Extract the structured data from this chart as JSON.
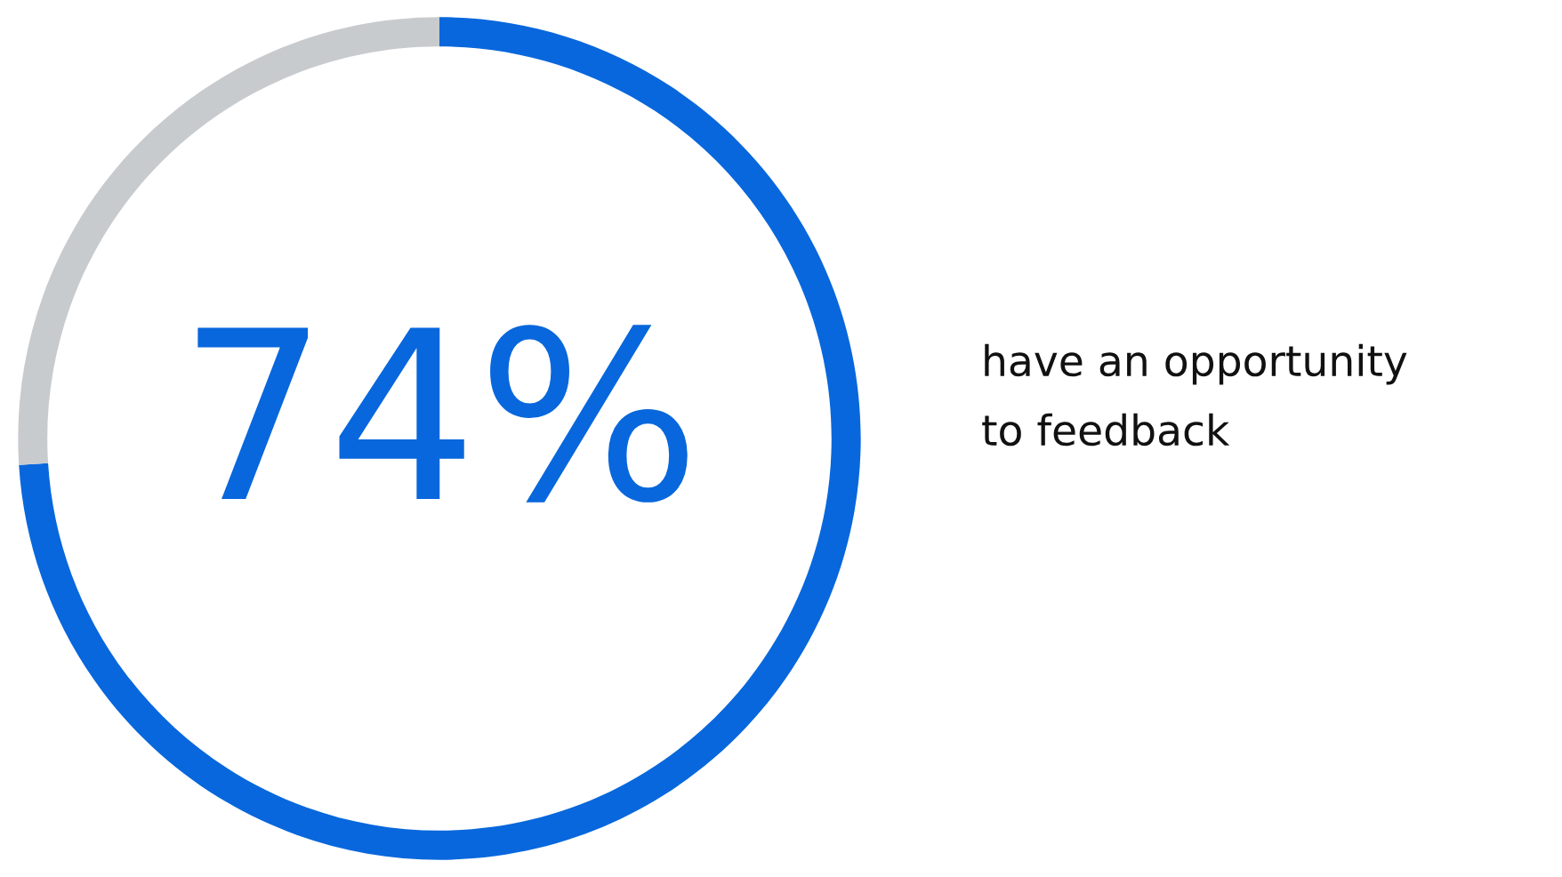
{
  "chart_data": {
    "type": "donut",
    "categories": [
      null,
      null
    ],
    "values": [
      74,
      26
    ],
    "colors": [
      "#0867dc",
      "#c8cbce"
    ],
    "value_labels": [
      "74%",
      null
    ],
    "annotations": [
      "have an opportunity\nto feedback"
    ]
  }
}
